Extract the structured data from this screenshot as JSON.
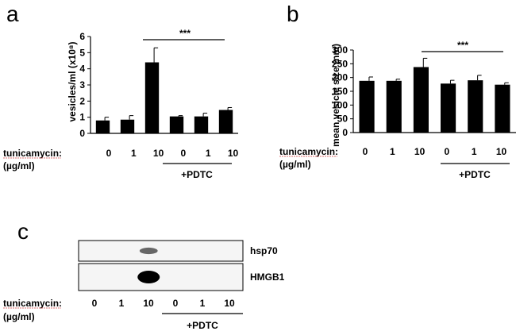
{
  "panels": {
    "a": "a",
    "b": "b",
    "c": "c"
  },
  "treatment": {
    "label_line1": "tunicamycin:",
    "label_line2": "(µg/ml)",
    "doses": [
      "0",
      "1",
      "10",
      "0",
      "1",
      "10"
    ],
    "pdtc_label": "+PDTC"
  },
  "significance": "***",
  "chart_data": [
    {
      "panel": "a",
      "type": "bar",
      "categories": [
        "0",
        "1",
        "10",
        "0",
        "1",
        "10"
      ],
      "values": [
        0.8,
        0.85,
        4.4,
        1.05,
        1.05,
        1.45
      ],
      "errors": [
        0.2,
        0.25,
        0.9,
        0.05,
        0.2,
        0.15
      ],
      "ylabel": "vesicles/ml (x10⁸)",
      "ylim": [
        0,
        6
      ],
      "yticks": [
        "0",
        "1",
        "2",
        "3",
        "4",
        "5",
        "6"
      ],
      "bar_color": "#000000"
    },
    {
      "panel": "b",
      "type": "bar",
      "categories": [
        "0",
        "1",
        "10",
        "0",
        "1",
        "10"
      ],
      "values": [
        188,
        188,
        238,
        178,
        190,
        174
      ],
      "errors": [
        14,
        6,
        32,
        12,
        18,
        7
      ],
      "ylabel": "mean vesicle size (nm)",
      "ylim": [
        0,
        300
      ],
      "yticks": [
        "0",
        "50",
        "100",
        "150",
        "200",
        "250",
        "300"
      ],
      "bar_color": "#000000"
    }
  ],
  "blot": {
    "bands": [
      {
        "label": "hsp70",
        "intensities": [
          0,
          0,
          0.35,
          0,
          0,
          0
        ]
      },
      {
        "label": "HMGB1",
        "intensities": [
          0,
          0,
          1.0,
          0,
          0,
          0
        ]
      }
    ]
  }
}
